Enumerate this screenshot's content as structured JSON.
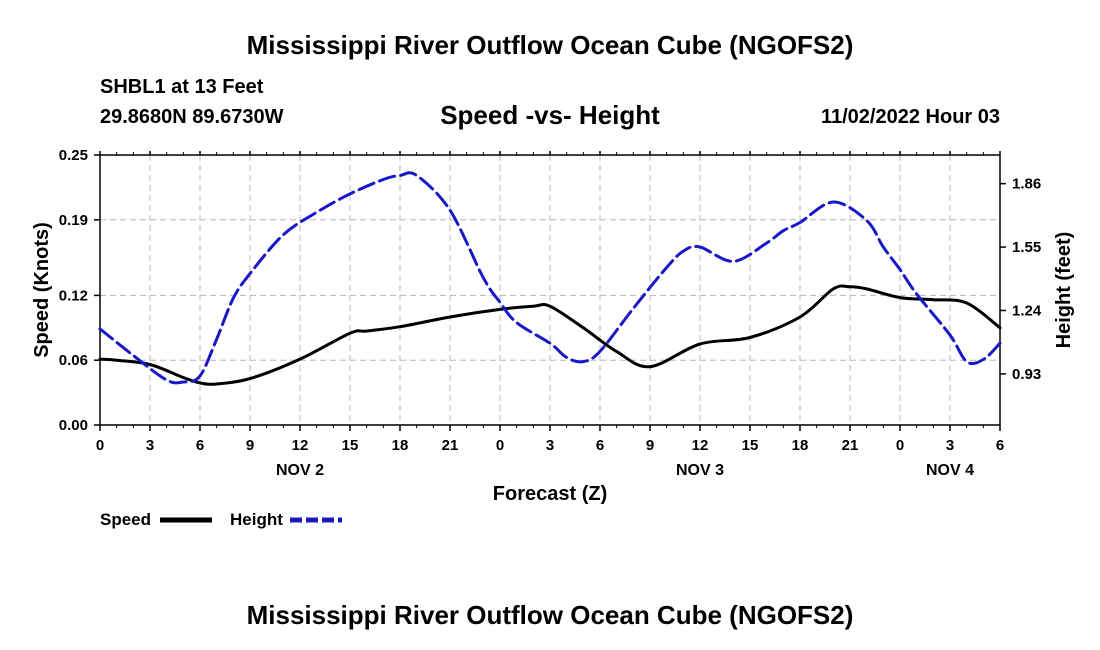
{
  "top_title": "Mississippi River Outflow Ocean Cube (NGOFS2)",
  "bottom_title": "Mississippi River Outflow Ocean Cube (NGOFS2)",
  "station": "SHBL1 at 13 Feet",
  "coords": "29.8680N  89.6730W",
  "datetime": "11/02/2022 Hour 03",
  "colors": {
    "speed": "#000000",
    "height": "#1818c8",
    "grid": "#b8b8b8"
  },
  "chart_data": {
    "type": "line",
    "title": "Speed -vs- Height",
    "xlabel": "Forecast (Z)",
    "ylabel_left": "Speed (Knots)",
    "ylabel_right": "Height (feet)",
    "x_range": [
      0,
      54
    ],
    "xticks": [
      0,
      3,
      6,
      9,
      12,
      15,
      18,
      21,
      24,
      27,
      30,
      33,
      36,
      39,
      42,
      45,
      48,
      51,
      54
    ],
    "xtick_labels": [
      "0",
      "3",
      "6",
      "9",
      "12",
      "15",
      "18",
      "21",
      "0",
      "3",
      "6",
      "9",
      "12",
      "15",
      "18",
      "21",
      "0",
      "3",
      "6"
    ],
    "day_labels": [
      {
        "x": 12,
        "label": "NOV 2"
      },
      {
        "x": 36,
        "label": "NOV 3"
      },
      {
        "x": 51,
        "label": "NOV 4"
      }
    ],
    "ylim_left": [
      0,
      0.25
    ],
    "yticks_left": [
      0,
      0.06,
      0.12,
      0.19,
      0.25
    ],
    "ytick_labels_left": [
      "0.00",
      "0.06",
      "0.12",
      "0.19",
      "0.25"
    ],
    "ylim_right": [
      0.68,
      2.0
    ],
    "yticks_right": [
      0.93,
      1.24,
      1.55,
      1.86
    ],
    "ytick_labels_right": [
      "0.93",
      "1.24",
      "1.55",
      "1.86"
    ],
    "grid": true,
    "legend": [
      {
        "name": "Speed",
        "style": "solid"
      },
      {
        "name": "Height",
        "style": "dashed"
      }
    ],
    "series": [
      {
        "name": "Speed",
        "axis": "left",
        "x": [
          0,
          1,
          3,
          5,
          6,
          7,
          9,
          12,
          15,
          16,
          18,
          21,
          24,
          26,
          27,
          29,
          31,
          33,
          36,
          39,
          42,
          44,
          45,
          46,
          48,
          50,
          52,
          54
        ],
        "values": [
          0.061,
          0.06,
          0.056,
          0.044,
          0.039,
          0.038,
          0.043,
          0.061,
          0.085,
          0.087,
          0.091,
          0.1,
          0.107,
          0.11,
          0.11,
          0.09,
          0.068,
          0.054,
          0.075,
          0.081,
          0.1,
          0.126,
          0.128,
          0.126,
          0.118,
          0.116,
          0.113,
          0.09
        ]
      },
      {
        "name": "Height",
        "axis": "right",
        "x": [
          0,
          2,
          4,
          5,
          6,
          7,
          8,
          9,
          11,
          13,
          15,
          17,
          18,
          19,
          21,
          23,
          24,
          25,
          27,
          28,
          29,
          30,
          32,
          34,
          35,
          36,
          38,
          40,
          41,
          42,
          44,
          46,
          47,
          48,
          49,
          51,
          52,
          53,
          54
        ],
        "values": [
          1.15,
          1.02,
          0.9,
          0.89,
          0.92,
          1.1,
          1.3,
          1.42,
          1.61,
          1.72,
          1.81,
          1.88,
          1.9,
          1.9,
          1.73,
          1.4,
          1.28,
          1.18,
          1.08,
          1.01,
          0.99,
          1.04,
          1.25,
          1.45,
          1.53,
          1.55,
          1.48,
          1.57,
          1.63,
          1.67,
          1.77,
          1.68,
          1.55,
          1.44,
          1.32,
          1.12,
          0.99,
          1.0,
          1.08
        ]
      }
    ]
  }
}
